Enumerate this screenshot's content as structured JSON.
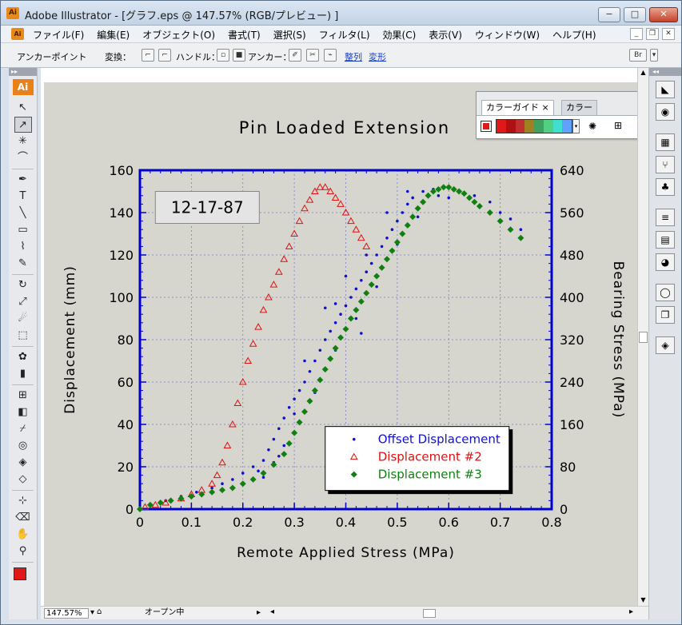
{
  "titlebar": {
    "app_icon": "Ai",
    "title": "Adobe Illustrator - [グラフ.eps @ 147.57% (RGB/プレビュー) ]",
    "min": "−",
    "max": "□",
    "close": "✕"
  },
  "menu": {
    "app_icon": "Ai",
    "items": [
      "ファイル(F)",
      "編集(E)",
      "オブジェクト(O)",
      "書式(T)",
      "選択(S)",
      "フィルタ(L)",
      "効果(C)",
      "表示(V)",
      "ウィンドウ(W)",
      "ヘルプ(H)"
    ]
  },
  "control": {
    "label": "アンカーポイント",
    "convert": "変換：",
    "handle": "ハンドル：",
    "anchor": "アンカー：",
    "align": "整列",
    "transform": "変形"
  },
  "tools": {
    "badge": "Ai"
  },
  "color_guide": {
    "tab_active": "カラーガイド",
    "tab_close": "×",
    "tab_other": "カラー",
    "swatches": [
      "#e01818",
      "#b01010",
      "#c03030",
      "#a08020",
      "#40a060",
      "#50d080",
      "#40e0d0",
      "#60a0ff"
    ]
  },
  "status": {
    "zoom": "147.57%",
    "text": "オープン中"
  },
  "chart_data": {
    "type": "scatter",
    "title": "Pin Loaded Extension",
    "annotation": "12-17-87",
    "xlabel": "Remote Applied Stress (MPa)",
    "ylabel": "Displacement (mm)",
    "y2label": "Bearing Stress (MPa)",
    "xlim": [
      0,
      0.8
    ],
    "ylim": [
      0,
      160
    ],
    "y2lim": [
      0,
      640
    ],
    "xticks": [
      "0",
      "0.1",
      "0.2",
      "0.3",
      "0.4",
      "0.5",
      "0.6",
      "0.7",
      "0.8"
    ],
    "yticks": [
      "0",
      "20",
      "40",
      "60",
      "80",
      "100",
      "120",
      "140",
      "160"
    ],
    "y2ticks": [
      "0",
      "80",
      "160",
      "240",
      "320",
      "400",
      "480",
      "560",
      "640"
    ],
    "grid": true,
    "legend_position": "bottom-right",
    "colors": {
      "frame": "#0000cc",
      "series1": "#1010cc",
      "series2": "#e01010",
      "series3": "#108010"
    },
    "series": [
      {
        "name": "Offset Displacement",
        "marker": "dot",
        "points": [
          [
            0.02,
            2
          ],
          [
            0.05,
            4
          ],
          [
            0.08,
            6
          ],
          [
            0.11,
            8
          ],
          [
            0.14,
            10
          ],
          [
            0.16,
            12
          ],
          [
            0.18,
            14
          ],
          [
            0.2,
            17
          ],
          [
            0.22,
            20
          ],
          [
            0.24,
            23
          ],
          [
            0.25,
            28
          ],
          [
            0.26,
            33
          ],
          [
            0.27,
            38
          ],
          [
            0.28,
            43
          ],
          [
            0.29,
            48
          ],
          [
            0.3,
            52
          ],
          [
            0.31,
            56
          ],
          [
            0.32,
            60
          ],
          [
            0.33,
            65
          ],
          [
            0.34,
            70
          ],
          [
            0.35,
            75
          ],
          [
            0.36,
            80
          ],
          [
            0.37,
            84
          ],
          [
            0.38,
            88
          ],
          [
            0.39,
            92
          ],
          [
            0.4,
            96
          ],
          [
            0.41,
            100
          ],
          [
            0.42,
            104
          ],
          [
            0.43,
            108
          ],
          [
            0.44,
            112
          ],
          [
            0.45,
            116
          ],
          [
            0.46,
            120
          ],
          [
            0.47,
            124
          ],
          [
            0.48,
            128
          ],
          [
            0.49,
            132
          ],
          [
            0.5,
            136
          ],
          [
            0.51,
            140
          ],
          [
            0.52,
            144
          ],
          [
            0.53,
            147
          ],
          [
            0.55,
            150
          ],
          [
            0.57,
            151
          ],
          [
            0.58,
            148
          ],
          [
            0.6,
            147
          ],
          [
            0.62,
            150
          ],
          [
            0.65,
            148
          ],
          [
            0.68,
            145
          ],
          [
            0.7,
            140
          ],
          [
            0.72,
            137
          ],
          [
            0.74,
            132
          ],
          [
            0.23,
            18
          ],
          [
            0.26,
            22
          ],
          [
            0.28,
            30
          ],
          [
            0.3,
            45
          ],
          [
            0.32,
            70
          ],
          [
            0.34,
            55
          ],
          [
            0.36,
            95
          ],
          [
            0.38,
            75
          ],
          [
            0.4,
            110
          ],
          [
            0.42,
            90
          ],
          [
            0.44,
            120
          ],
          [
            0.46,
            105
          ],
          [
            0.48,
            140
          ],
          [
            0.5,
            125
          ],
          [
            0.52,
            150
          ],
          [
            0.54,
            138
          ],
          [
            0.38,
            97
          ],
          [
            0.43,
            83
          ],
          [
            0.27,
            25
          ],
          [
            0.24,
            15
          ]
        ]
      },
      {
        "name": "Displacement #2",
        "marker": "triangle",
        "points": [
          [
            0.01,
            1
          ],
          [
            0.03,
            2
          ],
          [
            0.05,
            3
          ],
          [
            0.08,
            5
          ],
          [
            0.1,
            7
          ],
          [
            0.12,
            9
          ],
          [
            0.14,
            12
          ],
          [
            0.15,
            16
          ],
          [
            0.16,
            22
          ],
          [
            0.17,
            30
          ],
          [
            0.18,
            40
          ],
          [
            0.19,
            50
          ],
          [
            0.2,
            60
          ],
          [
            0.21,
            70
          ],
          [
            0.22,
            78
          ],
          [
            0.23,
            86
          ],
          [
            0.24,
            94
          ],
          [
            0.25,
            100
          ],
          [
            0.26,
            106
          ],
          [
            0.27,
            112
          ],
          [
            0.28,
            118
          ],
          [
            0.29,
            124
          ],
          [
            0.3,
            130
          ],
          [
            0.31,
            136
          ],
          [
            0.32,
            142
          ],
          [
            0.33,
            146
          ],
          [
            0.34,
            150
          ],
          [
            0.35,
            152
          ],
          [
            0.36,
            152
          ],
          [
            0.37,
            150
          ],
          [
            0.38,
            147
          ],
          [
            0.39,
            144
          ],
          [
            0.4,
            140
          ],
          [
            0.41,
            136
          ],
          [
            0.42,
            132
          ],
          [
            0.43,
            128
          ],
          [
            0.44,
            124
          ]
        ]
      },
      {
        "name": "Displacement #3",
        "marker": "diamond",
        "points": [
          [
            0,
            0
          ],
          [
            0.02,
            2
          ],
          [
            0.04,
            3
          ],
          [
            0.06,
            4
          ],
          [
            0.08,
            5
          ],
          [
            0.1,
            6
          ],
          [
            0.12,
            7
          ],
          [
            0.14,
            8
          ],
          [
            0.16,
            9
          ],
          [
            0.18,
            10
          ],
          [
            0.2,
            12
          ],
          [
            0.22,
            14
          ],
          [
            0.24,
            17
          ],
          [
            0.26,
            21
          ],
          [
            0.28,
            26
          ],
          [
            0.29,
            31
          ],
          [
            0.3,
            36
          ],
          [
            0.31,
            41
          ],
          [
            0.32,
            46
          ],
          [
            0.33,
            51
          ],
          [
            0.34,
            56
          ],
          [
            0.35,
            61
          ],
          [
            0.36,
            66
          ],
          [
            0.37,
            71
          ],
          [
            0.38,
            76
          ],
          [
            0.39,
            81
          ],
          [
            0.4,
            85
          ],
          [
            0.41,
            90
          ],
          [
            0.42,
            94
          ],
          [
            0.43,
            98
          ],
          [
            0.44,
            102
          ],
          [
            0.45,
            106
          ],
          [
            0.46,
            110
          ],
          [
            0.47,
            114
          ],
          [
            0.48,
            118
          ],
          [
            0.49,
            122
          ],
          [
            0.5,
            126
          ],
          [
            0.51,
            130
          ],
          [
            0.52,
            134
          ],
          [
            0.53,
            138
          ],
          [
            0.54,
            142
          ],
          [
            0.55,
            145
          ],
          [
            0.56,
            148
          ],
          [
            0.57,
            150
          ],
          [
            0.58,
            151
          ],
          [
            0.59,
            152
          ],
          [
            0.6,
            152
          ],
          [
            0.61,
            151
          ],
          [
            0.62,
            150
          ],
          [
            0.63,
            149
          ],
          [
            0.64,
            147
          ],
          [
            0.65,
            145
          ],
          [
            0.66,
            143
          ],
          [
            0.68,
            140
          ],
          [
            0.7,
            136
          ],
          [
            0.72,
            132
          ],
          [
            0.74,
            128
          ]
        ]
      }
    ]
  }
}
